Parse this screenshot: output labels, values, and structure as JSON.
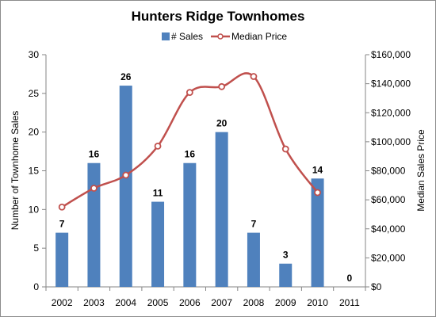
{
  "chart_data": {
    "type": "bar+line",
    "title": "Hunters Ridge Townhomes",
    "categories": [
      "2002",
      "2003",
      "2004",
      "2005",
      "2006",
      "2007",
      "2008",
      "2009",
      "2010",
      "2011"
    ],
    "series": [
      {
        "name": "# Sales",
        "type": "bar",
        "axis": "left",
        "color": "#4f81bd",
        "values": [
          7,
          16,
          26,
          11,
          16,
          20,
          7,
          3,
          14,
          0
        ],
        "data_labels": [
          "7",
          "16",
          "26",
          "11",
          "16",
          "20",
          "7",
          "3",
          "14",
          "0"
        ]
      },
      {
        "name": "Median Price",
        "type": "line",
        "axis": "right",
        "color": "#c0504d",
        "smooth": true,
        "values": [
          55000,
          68000,
          77000,
          97000,
          134000,
          138000,
          145000,
          95000,
          65000,
          null
        ]
      }
    ],
    "ylabel": "Number of Townhome Sales",
    "y2label": "Median Sales Price",
    "ylim": [
      0,
      30
    ],
    "y2lim": [
      0,
      160000
    ],
    "yticks": [
      "0",
      "5",
      "10",
      "15",
      "20",
      "25",
      "30"
    ],
    "y2ticks": [
      "$0",
      "$20,000",
      "$40,000",
      "$60,000",
      "$80,000",
      "$100,000",
      "$120,000",
      "$140,000",
      "$160,000"
    ],
    "grid": false,
    "legend": "top-center"
  }
}
